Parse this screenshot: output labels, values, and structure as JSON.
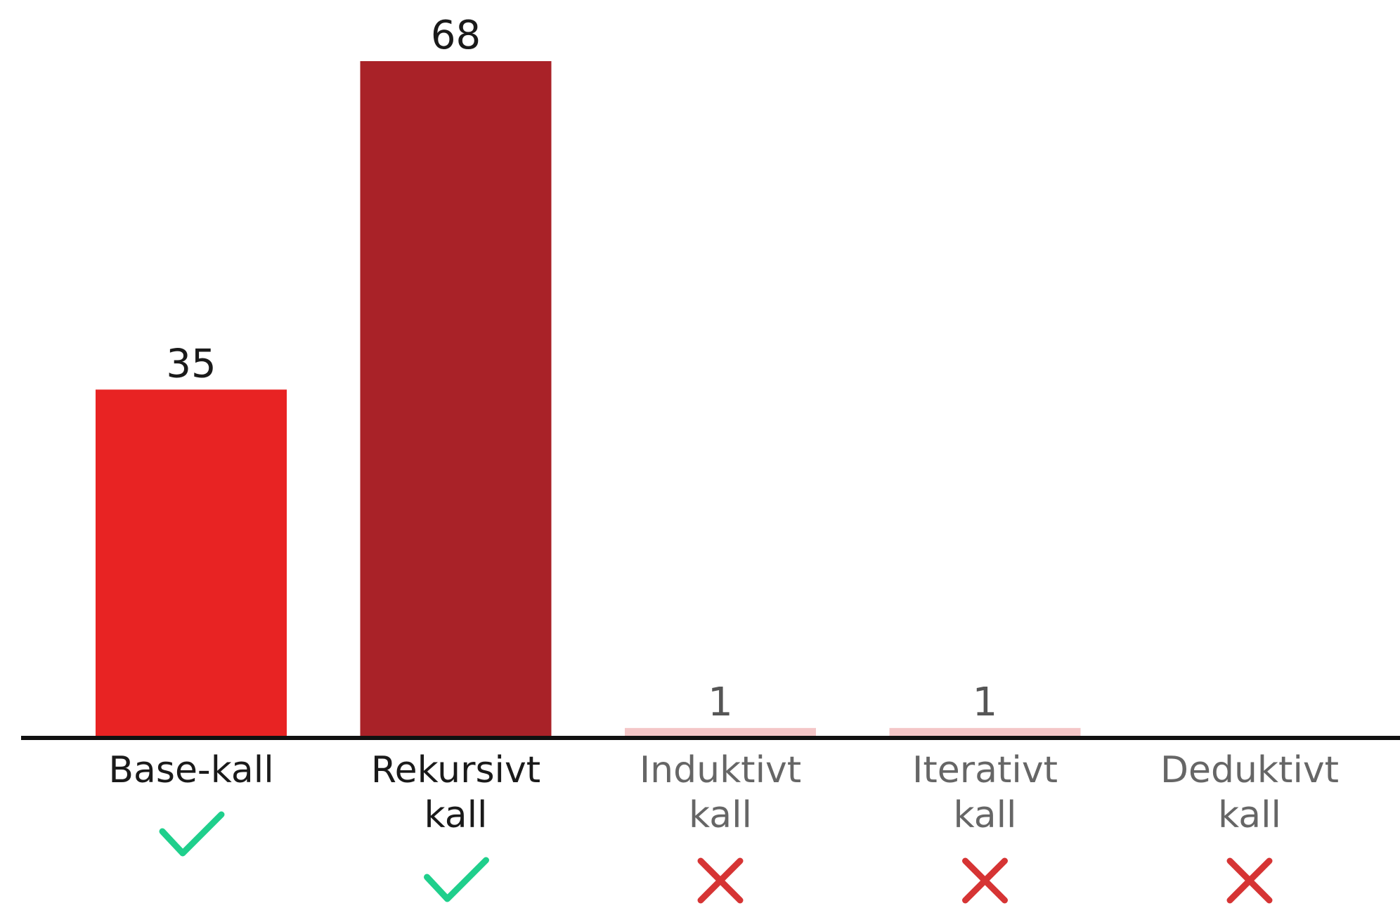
{
  "chart_data": {
    "type": "bar",
    "categories": [
      [
        "Base-kall"
      ],
      [
        "Rekursivt",
        "kall"
      ],
      [
        "Induktivt",
        "kall"
      ],
      [
        "Iterativt",
        "kall"
      ],
      [
        "Deduktivt",
        "kall"
      ]
    ],
    "values": [
      35,
      68,
      1,
      1,
      0
    ],
    "data_labels": [
      "35",
      "68",
      "1",
      "1",
      ""
    ],
    "correct": [
      true,
      true,
      false,
      false,
      false
    ],
    "bar_colors": [
      "#e82323",
      "#a92228",
      "#f4c7c8",
      "#f4c7c8",
      "#f4c7c8"
    ],
    "value_label_colors": [
      "#1a1a1a",
      "#1a1a1a",
      "#555555",
      "#555555",
      "#555555"
    ],
    "category_label_colors": [
      "#1a1a1a",
      "#1a1a1a",
      "#666666",
      "#666666",
      "#666666"
    ],
    "axis_color": "#111111",
    "check_color": "#1fcf8c",
    "cross_color": "#d63434",
    "ylim": [
      0,
      68
    ],
    "title": "",
    "xlabel": "",
    "ylabel": "",
    "grid": false,
    "legend": "none"
  }
}
